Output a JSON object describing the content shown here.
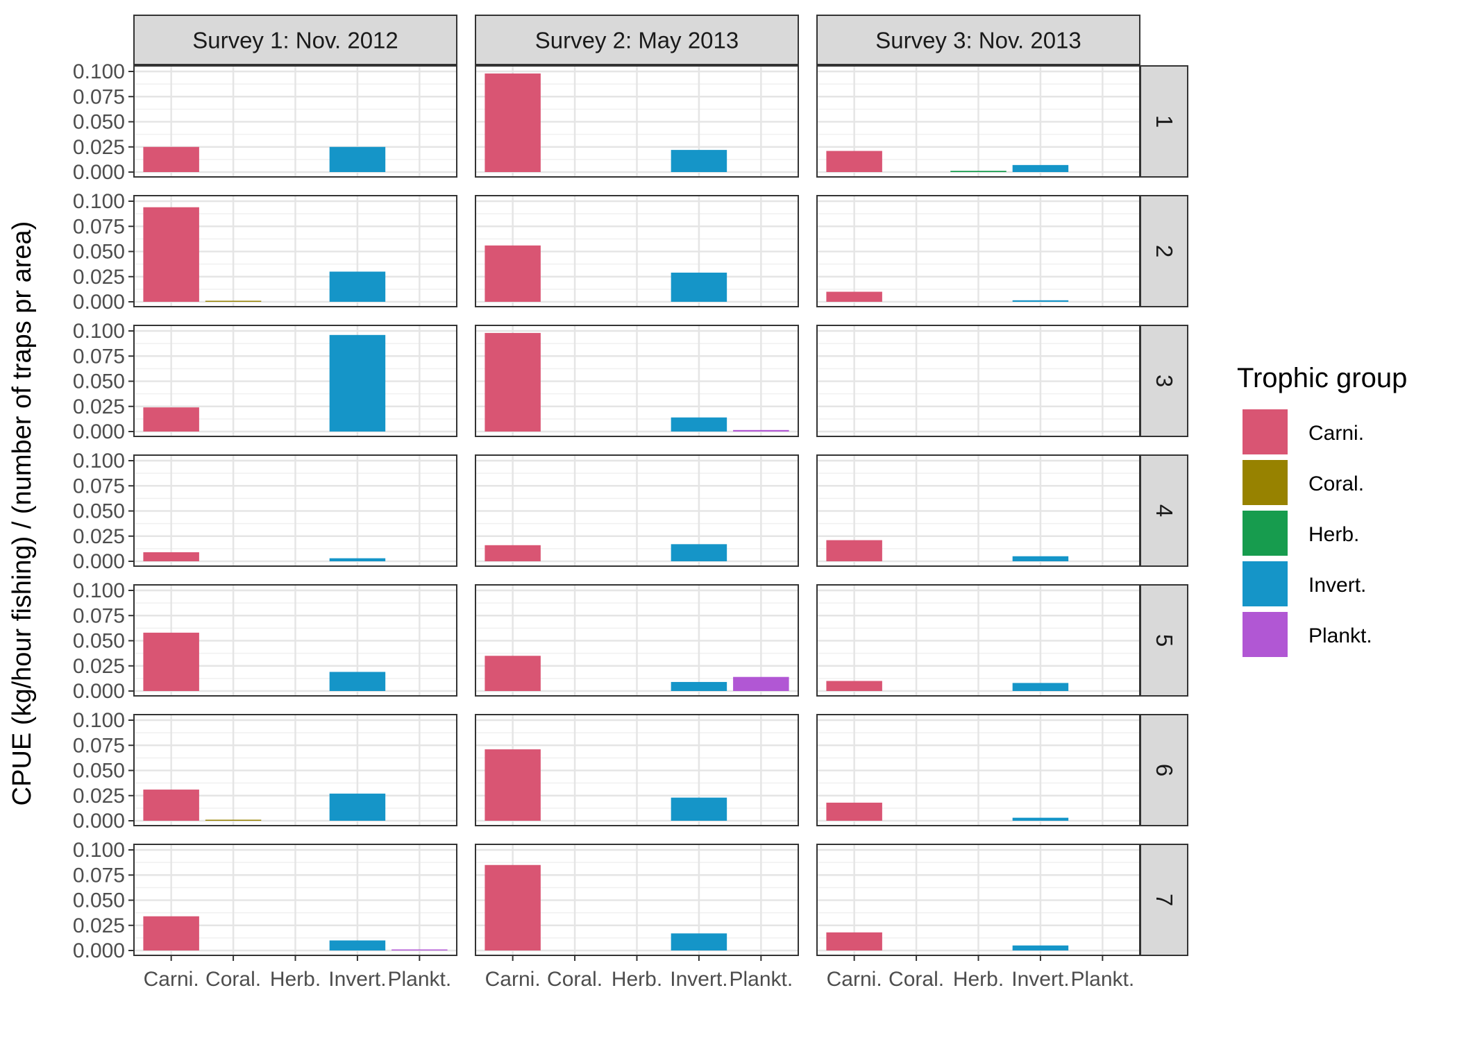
{
  "chart_data": {
    "type": "bar",
    "ylabel": "CPUE (kg/hour fishing) / (number of traps pr area)",
    "xlabel": "",
    "categories": [
      "Carni.",
      "Coral.",
      "Herb.",
      "Invert.",
      "Plankt."
    ],
    "column_facets": [
      "Survey 1: Nov. 2012",
      "Survey 2: May 2013",
      "Survey 3: Nov. 2013"
    ],
    "row_facets": [
      "1",
      "2",
      "3",
      "4",
      "5",
      "6",
      "7"
    ],
    "ylim": [
      0,
      0.1
    ],
    "yticks": [
      "0.000",
      "0.025",
      "0.050",
      "0.075",
      "0.100"
    ],
    "ytick_values": [
      0,
      0.025,
      0.05,
      0.075,
      0.1
    ],
    "grid": true,
    "legend": {
      "title": "Trophic group",
      "placement": "right",
      "entries": [
        "Carni.",
        "Coral.",
        "Herb.",
        "Invert.",
        "Plankt."
      ]
    },
    "colors": {
      "Carni.": "#D95573",
      "Coral.": "#978200",
      "Herb.": "#179C4E",
      "Invert.": "#1595C8",
      "Plankt.": "#B157D4"
    },
    "values": [
      [
        [
          0.025,
          0,
          0,
          0.025,
          0
        ],
        [
          0.094,
          0.0006,
          0,
          0.03,
          0
        ],
        [
          0.024,
          0,
          0,
          0.096,
          0
        ],
        [
          0.009,
          0,
          0,
          0.003,
          0
        ],
        [
          0.058,
          0,
          0,
          0.019,
          0
        ],
        [
          0.031,
          0.0006,
          0,
          0.027,
          0
        ],
        [
          0.034,
          0,
          0,
          0.01,
          0.0008
        ]
      ],
      [
        [
          0.098,
          0,
          0,
          0.022,
          0
        ],
        [
          0.056,
          0,
          0,
          0.029,
          0
        ],
        [
          0.098,
          0,
          0,
          0.014,
          0.0015
        ],
        [
          0.016,
          0,
          0,
          0.017,
          0
        ],
        [
          0.035,
          0,
          0,
          0.009,
          0.014
        ],
        [
          0.071,
          0,
          0,
          0.023,
          0
        ],
        [
          0.085,
          0,
          0,
          0.017,
          0
        ]
      ],
      [
        [
          0.021,
          0,
          0.0012,
          0.007,
          0
        ],
        [
          0.01,
          0,
          0,
          0.0015,
          0
        ],
        [
          0,
          0,
          0,
          0,
          0
        ],
        [
          0.021,
          0,
          0,
          0.005,
          0
        ],
        [
          0.01,
          0,
          0,
          0.008,
          0
        ],
        [
          0.018,
          0,
          0,
          0.003,
          0
        ],
        [
          0.018,
          0,
          0,
          0.005,
          0
        ]
      ]
    ]
  }
}
